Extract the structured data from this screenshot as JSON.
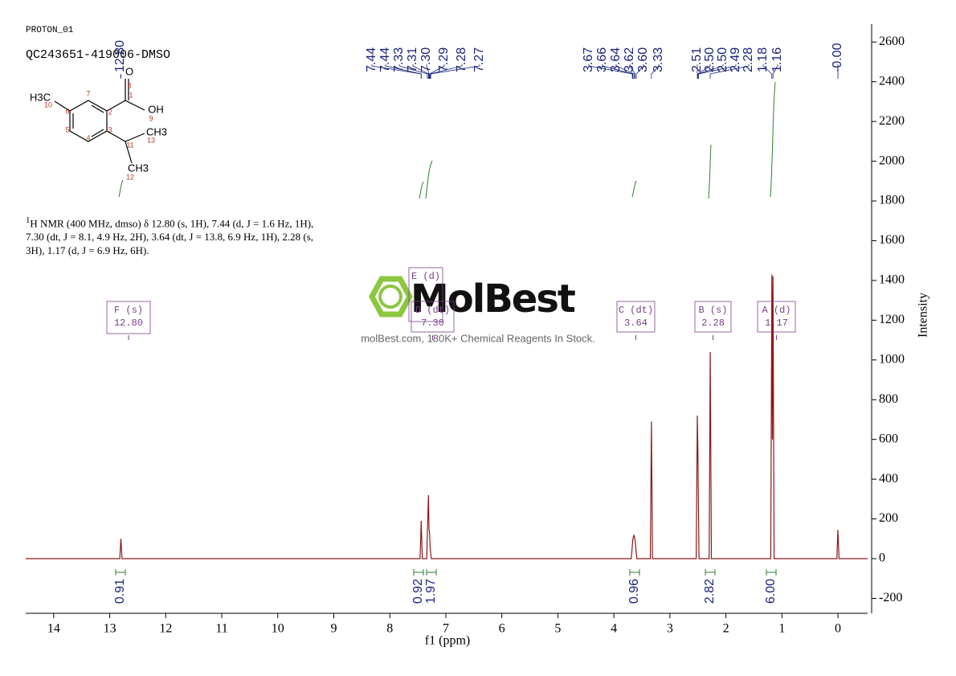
{
  "header": {
    "experiment": "PROTON_01",
    "sample": "QC243651-419006-DMSO"
  },
  "nmr_text": {
    "isotope": "1",
    "body": "H NMR (400 MHz, dmso) δ 12.80 (s, 1H), 7.44 (d, J = 1.6 Hz, 1H), 7.30 (dt, J = 8.1, 4.9 Hz, 2H), 3.64 (dt, J = 13.8, 6.9 Hz, 1H), 2.28 (s, 3H), 1.17 (d, J = 6.9 Hz, 6H)."
  },
  "structure": {
    "labels": [
      "H3C",
      "10",
      "6",
      "7",
      "2",
      "1",
      "8",
      "O",
      "OH",
      "9",
      "5",
      "4",
      "3",
      "11",
      "CH3",
      "13",
      "CH3",
      "12"
    ]
  },
  "watermark": {
    "title": "MolBest",
    "subtitle": "molBest.com, 180K+ Chemical Reagents In Stock."
  },
  "chart_data": {
    "type": "line",
    "xlabel": "f1 (ppm)",
    "ylabel": "Intensity",
    "xlim": [
      14.5,
      -0.53
    ],
    "ylim": [
      -275,
      2690
    ],
    "xticks": [
      14,
      13,
      12,
      11,
      10,
      9,
      8,
      7,
      6,
      5,
      4,
      3,
      2,
      1,
      0
    ],
    "yticks": [
      -200,
      0,
      200,
      400,
      600,
      800,
      1000,
      1200,
      1400,
      1600,
      1800,
      2000,
      2200,
      2400,
      2600
    ],
    "spectrum": {
      "color": "#8b1a1a",
      "x": [
        14.5,
        12.82,
        12.8,
        12.78,
        7.46,
        7.44,
        7.42,
        7.34,
        7.33,
        7.31,
        7.3,
        7.29,
        7.28,
        7.26,
        3.69,
        3.66,
        3.64,
        3.62,
        3.59,
        3.35,
        3.33,
        3.31,
        2.53,
        2.51,
        2.5,
        2.48,
        2.3,
        2.28,
        2.26,
        1.2,
        1.18,
        1.17,
        1.16,
        1.14,
        0.02,
        0,
        -0.02,
        -0.53
      ],
      "y": [
        0,
        0,
        100,
        0,
        0,
        190,
        0,
        0,
        120,
        320,
        150,
        130,
        60,
        0,
        0,
        100,
        120,
        90,
        0,
        0,
        690,
        0,
        0,
        720,
        550,
        0,
        0,
        1040,
        0,
        0,
        1430,
        600,
        1420,
        0,
        0,
        145,
        0,
        0
      ]
    },
    "peak_labels": [
      {
        "value": 12.8,
        "label": "12.80"
      },
      7.44,
      7.44,
      7.33,
      7.31,
      {
        "value": 7.3,
        "label": "7.30"
      },
      7.29,
      7.28,
      7.27,
      3.67,
      3.66,
      3.64,
      3.62,
      {
        "value": 3.6,
        "label": "3.60"
      },
      3.33,
      2.51,
      {
        "value": 2.5,
        "label": "2.50"
      },
      {
        "value": 2.5,
        "label": "2.50"
      },
      2.49,
      2.28,
      1.18,
      1.16,
      {
        "value": 0,
        "label": "-0.00"
      }
    ],
    "multiplets": [
      {
        "name": "F (s)",
        "shift": "12.80"
      },
      {
        "name": "E (d)"
      },
      {
        "name": "D (dt)",
        "shift": "7.30"
      },
      {
        "name": "C (dt)",
        "shift": "3.64"
      },
      {
        "name": "B (s)",
        "shift": "2.28"
      },
      {
        "name": "A (d)",
        "shift": "1.17"
      }
    ],
    "integrals": [
      0.91,
      0.92,
      1.97,
      0.96,
      2.82,
      {
        "value": 6,
        "label": "6.00"
      }
    ]
  }
}
